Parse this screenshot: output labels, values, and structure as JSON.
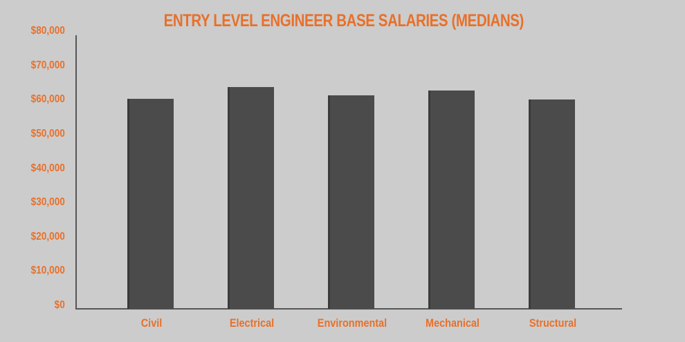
{
  "colors": {
    "background": "#cccccc",
    "bar": "#4b4b4b",
    "accent": "#e8702a",
    "axis": "#555555"
  },
  "chart_data": {
    "type": "bar",
    "title": "ENTRY LEVEL ENGINEER BASE SALARIES (MEDIANS)",
    "xlabel": "",
    "ylabel": "",
    "categories": [
      "Civil",
      "Electrical",
      "Environmental",
      "Mechanical",
      "Structural"
    ],
    "values": [
      61200,
      64700,
      62200,
      63700,
      61000
    ],
    "ylim": [
      0,
      80000
    ],
    "yticks": [
      0,
      10000,
      20000,
      30000,
      40000,
      50000,
      60000,
      70000,
      80000
    ],
    "ytick_labels": [
      "$0",
      "$10,000",
      "$20,000",
      "$30,000",
      "$40,000",
      "$50,000",
      "$60,000",
      "$70,000",
      "$80,000"
    ],
    "grid": false,
    "legend": null
  }
}
